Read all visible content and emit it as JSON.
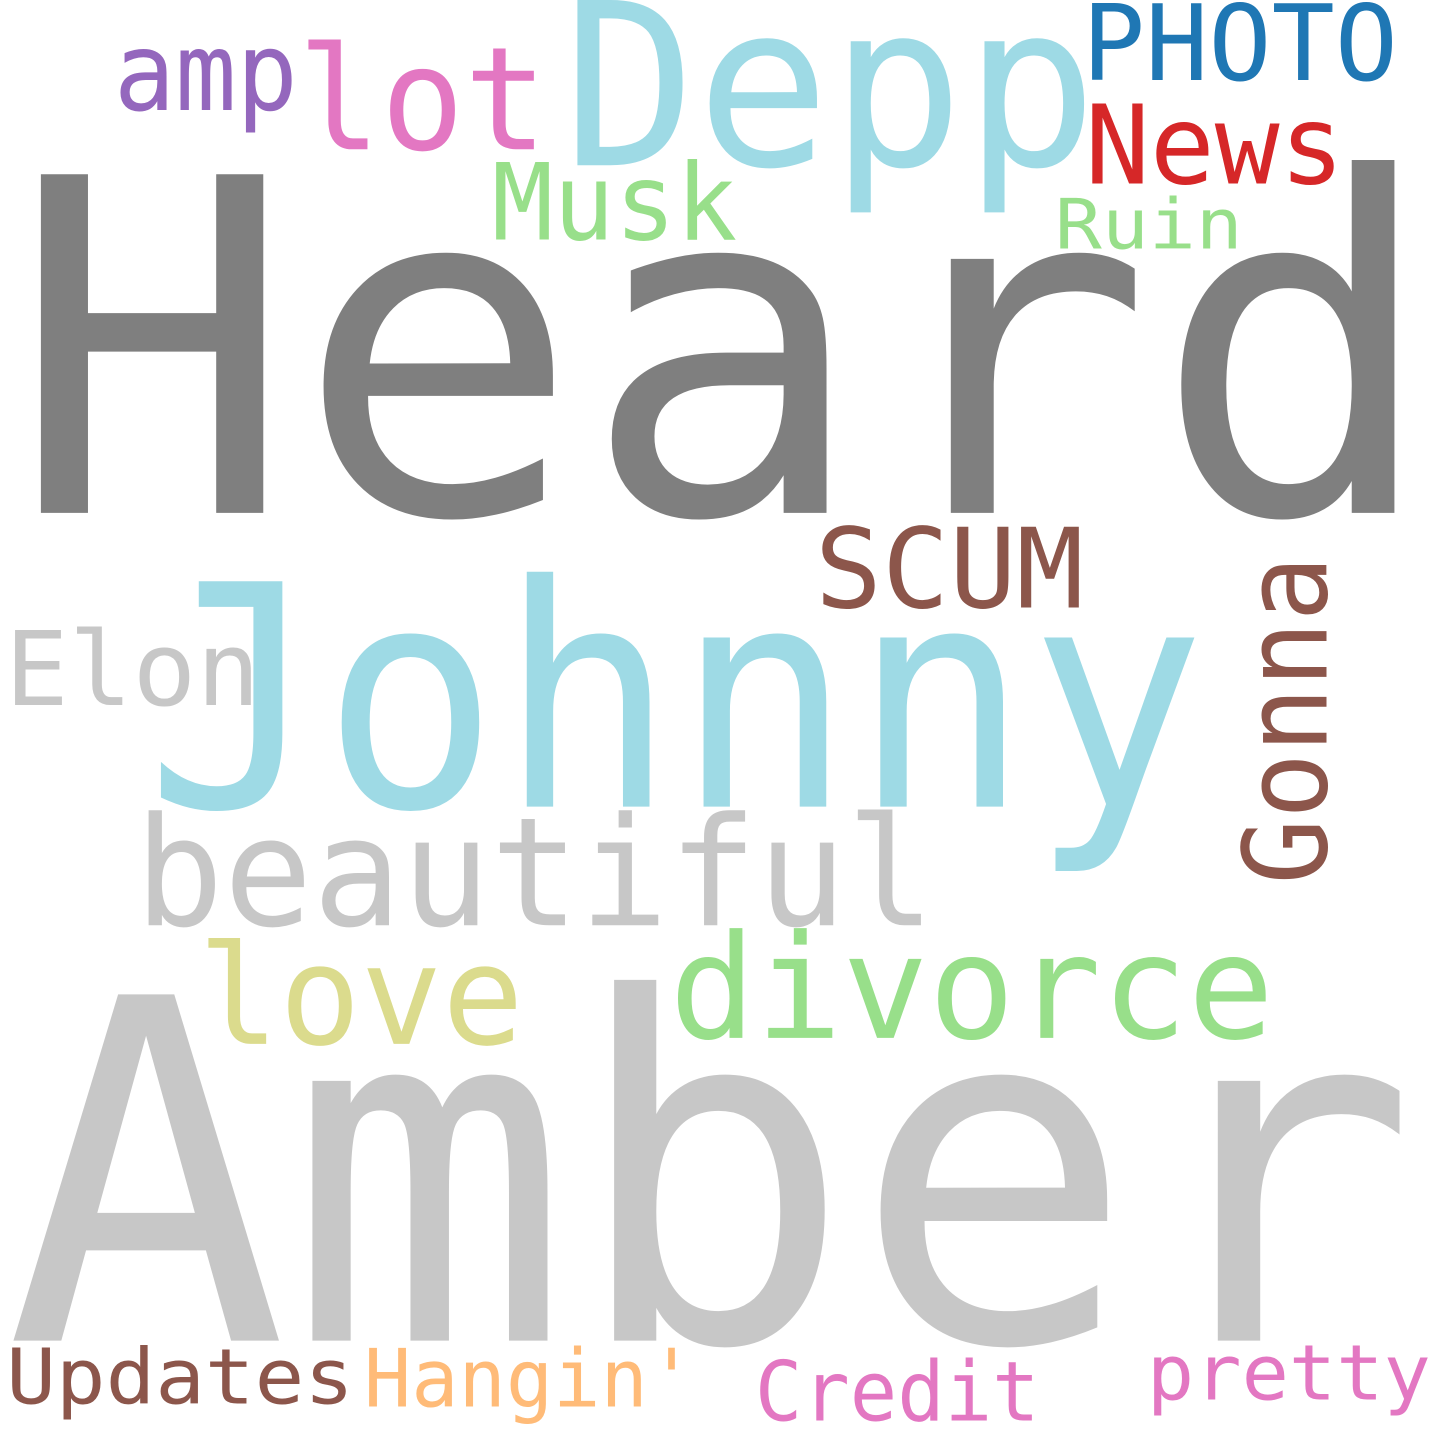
{
  "words": [
    {
      "key": "heard",
      "text": "Heard",
      "color": "#7f7f7f"
    },
    {
      "key": "amber",
      "text": "Amber",
      "color": "#c7c7c7"
    },
    {
      "key": "johnny",
      "text": "Johnny",
      "color": "#9edae5"
    },
    {
      "key": "depp",
      "text": "Depp",
      "color": "#9edae5"
    },
    {
      "key": "beautiful",
      "text": "beautiful",
      "color": "#c7c7c7"
    },
    {
      "key": "divorce",
      "text": "divorce",
      "color": "#98df8a"
    },
    {
      "key": "love",
      "text": "love",
      "color": "#dbdb8d"
    },
    {
      "key": "lot",
      "text": "lot",
      "color": "#e377c2"
    },
    {
      "key": "gonna",
      "text": "Gonna",
      "color": "#8c564b"
    },
    {
      "key": "scum",
      "text": "SCUM",
      "color": "#8c564b"
    },
    {
      "key": "musk",
      "text": "Musk",
      "color": "#98df8a"
    },
    {
      "key": "elon",
      "text": "Elon",
      "color": "#c7c7c7"
    },
    {
      "key": "photo",
      "text": "PHOTO",
      "color": "#1f77b4"
    },
    {
      "key": "news",
      "text": "News",
      "color": "#d62728"
    },
    {
      "key": "amp",
      "text": "amp",
      "color": "#9467bd"
    },
    {
      "key": "ruin",
      "text": "Ruin",
      "color": "#98df8a"
    },
    {
      "key": "updates",
      "text": "Updates",
      "color": "#8c564b"
    },
    {
      "key": "hangin",
      "text": "Hangin'",
      "color": "#ffbb78"
    },
    {
      "key": "credit",
      "text": "Credit",
      "color": "#e377c2"
    },
    {
      "key": "pretty",
      "text": "pretty",
      "color": "#e377c2"
    }
  ]
}
